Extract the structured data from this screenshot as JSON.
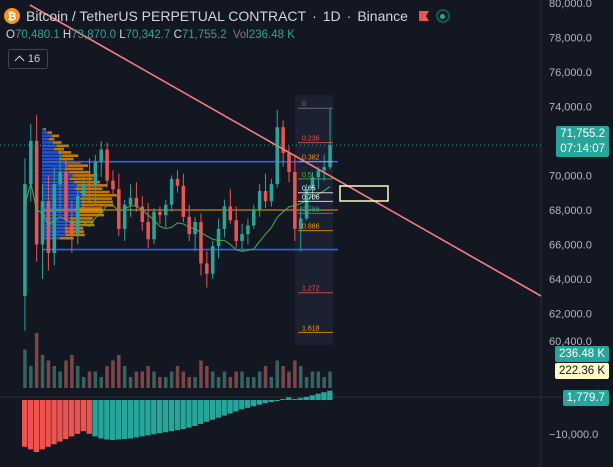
{
  "header": {
    "symbol_title": "Bitcoin / TetherUS PERPETUAL CONTRACT",
    "sep": "·",
    "interval": "1D",
    "exchange": "Binance",
    "logo_glyph": "₿",
    "icons": [
      "bitcoin-logo",
      "flag-icon",
      "live-status-icon"
    ]
  },
  "ohlc": {
    "o_label": "O",
    "o_value": "70,480.1",
    "h_label": "H",
    "h_value": "73,870.0",
    "l_label": "L",
    "l_value": "70,342.7",
    "c_label": "C",
    "c_value": "71,755.2",
    "vol_label": "Vol",
    "vol_value": "236.48 K"
  },
  "indicator_toggle": {
    "count": "16"
  },
  "price_axis": {
    "ticks": [
      "80,000.0",
      "78,000.0",
      "76,000.0",
      "74,000.0",
      "70,000.0",
      "68,000.0",
      "66,000.0",
      "64,000.0",
      "62,000.0",
      "60,400.0"
    ]
  },
  "tags": {
    "last_price": "71,755.2",
    "countdown": "07:14:07",
    "volume": "236.48 K",
    "volume_ma": "222.36 K",
    "oscillator": "1,779.7",
    "osc_tick": "−10,000.0"
  },
  "fib_levels": [
    "0",
    "0.236",
    "0.382",
    "0.5",
    "0.65",
    "0.706",
    "0.786",
    "0.886",
    "1.272",
    "1.618"
  ],
  "colors": {
    "background": "#131722",
    "up": "#26a69a",
    "down": "#ef5350",
    "trendline": "#f77c80",
    "levels": "#2962ff",
    "ma": "#4caf50",
    "profile_up": "#2962ff",
    "profile_mid": "#ff9800",
    "volume_ma_tag": "#fff9c4"
  },
  "chart_data": {
    "type": "candlestick",
    "interval": "1D",
    "series_name": "BTCUSDT.P",
    "candles": [
      [
        63000,
        71000,
        61000,
        69500
      ],
      [
        69500,
        73000,
        68500,
        72000
      ],
      [
        72000,
        73500,
        65000,
        66000
      ],
      [
        66000,
        69500,
        64000,
        68500
      ],
      [
        68500,
        70000,
        64500,
        65500
      ],
      [
        65500,
        70500,
        64800,
        69500
      ],
      [
        69500,
        71500,
        67800,
        70200
      ],
      [
        70200,
        71000,
        66500,
        67400
      ],
      [
        67400,
        68500,
        65500,
        66600
      ],
      [
        66600,
        69500,
        66000,
        68800
      ],
      [
        68800,
        70000,
        68000,
        69500
      ],
      [
        69500,
        71000,
        68500,
        69400
      ],
      [
        69400,
        71200,
        68200,
        70800
      ],
      [
        70800,
        72000,
        69900,
        71500
      ],
      [
        71500,
        71900,
        69300,
        69700
      ],
      [
        69700,
        70300,
        68800,
        69200
      ],
      [
        69200,
        70100,
        66500,
        66900
      ],
      [
        66900,
        68600,
        66200,
        68300
      ],
      [
        68300,
        69500,
        67600,
        68700
      ],
      [
        68700,
        69600,
        67900,
        68200
      ],
      [
        68200,
        68800,
        66800,
        67300
      ],
      [
        67300,
        68400,
        65800,
        66300
      ],
      [
        66300,
        68100,
        66000,
        67900
      ],
      [
        67900,
        68200,
        67200,
        67700
      ],
      [
        67700,
        68600,
        67000,
        68300
      ],
      [
        68300,
        70000,
        67900,
        69800
      ],
      [
        69800,
        70300,
        69000,
        69400
      ],
      [
        69400,
        70100,
        67300,
        67600
      ],
      [
        67600,
        68300,
        66200,
        66600
      ],
      [
        66600,
        67600,
        65600,
        67300
      ],
      [
        67300,
        67800,
        64200,
        64900
      ],
      [
        64900,
        65600,
        63500,
        64300
      ],
      [
        64300,
        66200,
        64000,
        65900
      ],
      [
        65900,
        67500,
        65200,
        66900
      ],
      [
        66900,
        68600,
        66400,
        68200
      ],
      [
        68200,
        69200,
        67200,
        67400
      ],
      [
        67400,
        68200,
        65800,
        66200
      ],
      [
        66200,
        67200,
        65700,
        66600
      ],
      [
        66600,
        67500,
        66000,
        67100
      ],
      [
        67100,
        68300,
        66900,
        68000
      ],
      [
        68000,
        69500,
        67600,
        69100
      ],
      [
        69100,
        70100,
        68100,
        68500
      ],
      [
        68500,
        69800,
        68200,
        69500
      ],
      [
        69500,
        73800,
        69300,
        72800
      ],
      [
        72800,
        73200,
        70500,
        71300
      ],
      [
        71300,
        71700,
        69600,
        70200
      ],
      [
        70200,
        71200,
        66200,
        66900
      ],
      [
        66900,
        68200,
        65600,
        67500
      ],
      [
        67500,
        69500,
        67400,
        69200
      ],
      [
        69200,
        70200,
        68600,
        69900
      ],
      [
        69900,
        70500,
        69200,
        70300
      ],
      [
        70300,
        71200,
        69700,
        70480
      ],
      [
        70480,
        73870,
        70342,
        71755
      ]
    ],
    "volume": [
      7,
      4,
      10,
      6,
      5,
      4,
      3,
      5,
      6,
      4,
      2,
      3,
      3,
      2,
      4,
      5,
      6,
      4,
      2,
      3,
      3,
      4,
      3,
      2,
      2,
      3,
      4,
      3,
      2,
      2,
      5,
      4,
      3,
      2,
      3,
      2,
      3,
      3,
      2,
      2,
      3,
      4,
      2,
      5,
      4,
      3,
      5,
      4,
      2,
      3,
      3,
      2,
      3
    ],
    "oscillator": [
      -9,
      -9.5,
      -10,
      -9.5,
      -9,
      -8.5,
      -8,
      -7.5,
      -7,
      -6.5,
      -6,
      -6.5,
      -7,
      -7.4,
      -7.6,
      -7.7,
      -7.6,
      -7.5,
      -7.4,
      -7.2,
      -7,
      -6.8,
      -6.6,
      -6.4,
      -6.2,
      -6,
      -5.8,
      -5.6,
      -5.3,
      -5,
      -4.6,
      -4.2,
      -3.8,
      -3.4,
      -3,
      -2.6,
      -2.2,
      -1.8,
      -1.5,
      -1.2,
      -0.9,
      -0.6,
      -0.4,
      -0.2,
      0.2,
      0.5,
      0.2,
      0.4,
      0.6,
      0.9,
      1.2,
      1.5,
      1.78
    ],
    "horizontal_levels": [
      70800,
      65700
    ],
    "ylim": [
      59800,
      80800
    ]
  }
}
